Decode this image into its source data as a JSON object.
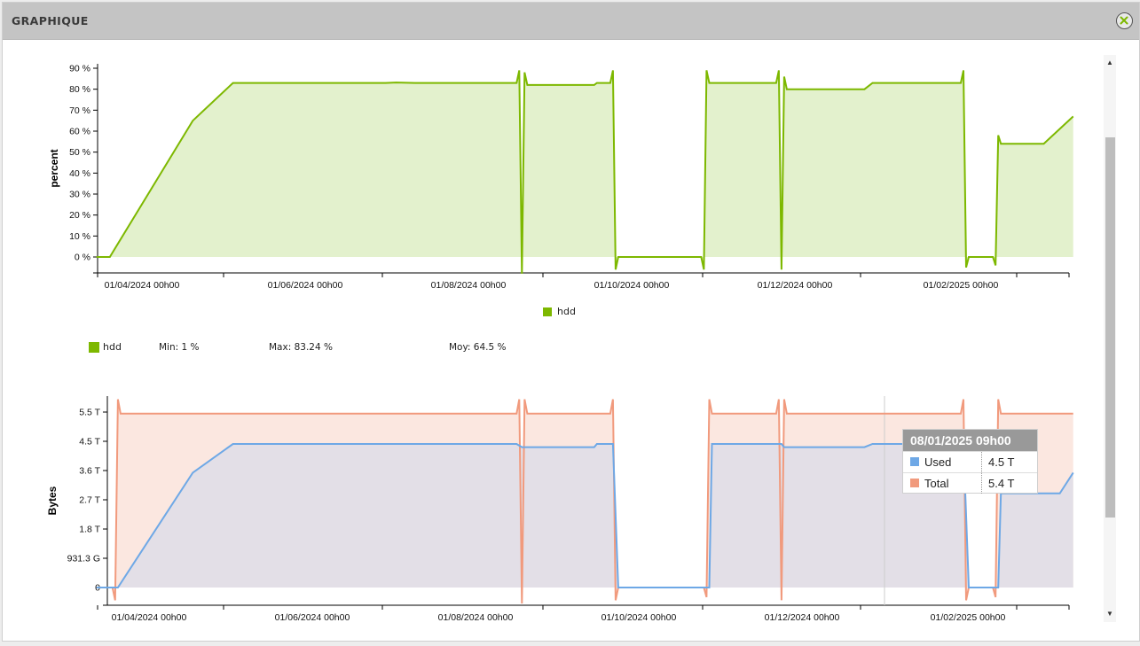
{
  "modal": {
    "title": "GRAPHIQUE"
  },
  "colors": {
    "green": "#7db800",
    "green_fill": "#e3f1cd",
    "blue": "#6ea8e6",
    "salmon": "#f19a7d",
    "salmon_fill": "#fbe7e0",
    "purple_fill": "#e3dfe7"
  },
  "icons": {
    "close": "close-icon",
    "scroll_up": "triangle-up-icon",
    "scroll_down": "triangle-down-icon"
  },
  "chart_data": [
    {
      "type": "area",
      "ylabel": "percent",
      "xlabel": "",
      "y_ticks": [
        "0 %",
        "10 %",
        "20 %",
        "30 %",
        "40 %",
        "50 %",
        "60 %",
        "70 %",
        "80 %",
        "90 %"
      ],
      "ylim": [
        0,
        90
      ],
      "x_ticks": [
        "01/04/2024 00h00",
        "01/06/2024 00h00",
        "01/08/2024 00h00",
        "01/10/2024 00h00",
        "01/12/2024 00h00",
        "01/02/2025 00h00"
      ],
      "legend": [
        "hdd"
      ],
      "series": [
        {
          "name": "hdd",
          "points": [
            [
              "2024-03-15",
              0
            ],
            [
              "2024-03-20",
              0
            ],
            [
              "2024-04-20",
              65
            ],
            [
              "2024-05-05",
              83
            ],
            [
              "2024-07-01",
              83
            ],
            [
              "2024-07-05",
              83.2
            ],
            [
              "2024-07-12",
              83
            ],
            [
              "2024-08-19",
              83
            ],
            [
              "2024-08-20",
              89
            ],
            [
              "2024-08-21",
              -8
            ],
            [
              "2024-08-22",
              88
            ],
            [
              "2024-08-23",
              82
            ],
            [
              "2024-09-17",
              82
            ],
            [
              "2024-09-18",
              83
            ],
            [
              "2024-09-23",
              83
            ],
            [
              "2024-09-24",
              89
            ],
            [
              "2024-09-25",
              -6
            ],
            [
              "2024-09-26",
              0
            ],
            [
              "2024-10-27",
              0
            ],
            [
              "2024-10-28",
              -6
            ],
            [
              "2024-10-29",
              89
            ],
            [
              "2024-10-30",
              83
            ],
            [
              "2024-11-24",
              83
            ],
            [
              "2024-11-25",
              89
            ],
            [
              "2024-11-26",
              -6
            ],
            [
              "2024-11-27",
              86
            ],
            [
              "2024-11-28",
              80
            ],
            [
              "2024-12-27",
              80
            ],
            [
              "2024-12-30",
              83
            ],
            [
              "2025-02-01",
              83
            ],
            [
              "2025-02-02",
              89
            ],
            [
              "2025-02-03",
              -5
            ],
            [
              "2025-02-04",
              0
            ],
            [
              "2025-02-13",
              0
            ],
            [
              "2025-02-14",
              -4
            ],
            [
              "2025-02-15",
              58
            ],
            [
              "2025-02-16",
              54
            ],
            [
              "2025-03-04",
              54
            ],
            [
              "2025-03-15",
              67
            ]
          ]
        }
      ]
    },
    {
      "type": "area",
      "ylabel": "Bytes",
      "xlabel": "",
      "y_ticks": [
        "0",
        "931.3 G",
        "1.8 T",
        "2.7 T",
        "3.6 T",
        "4.5 T",
        "5.5 T"
      ],
      "ylim": [
        0,
        5.5
      ],
      "x_ticks": [
        "01/04/2024 00h00",
        "01/06/2024 00h00",
        "01/08/2024 00h00",
        "01/10/2024 00h00",
        "01/12/2024 00h00",
        "01/02/2025 00h00"
      ],
      "series": [
        {
          "name": "Total",
          "points": [
            [
              "2024-03-15",
              0
            ],
            [
              "2024-03-21",
              0
            ],
            [
              "2024-03-22",
              -0.4
            ],
            [
              "2024-03-23",
              5.9
            ],
            [
              "2024-03-24",
              5.45
            ],
            [
              "2024-08-19",
              5.45
            ],
            [
              "2024-08-20",
              5.9
            ],
            [
              "2024-08-21",
              -0.5
            ],
            [
              "2024-08-22",
              5.9
            ],
            [
              "2024-08-23",
              5.45
            ],
            [
              "2024-09-23",
              5.45
            ],
            [
              "2024-09-24",
              5.9
            ],
            [
              "2024-09-25",
              -0.4
            ],
            [
              "2024-09-26",
              0
            ],
            [
              "2024-10-28",
              0
            ],
            [
              "2024-10-29",
              -0.3
            ],
            [
              "2024-10-30",
              5.9
            ],
            [
              "2024-10-31",
              5.45
            ],
            [
              "2024-11-24",
              5.45
            ],
            [
              "2024-11-25",
              5.9
            ],
            [
              "2024-11-26",
              -0.4
            ],
            [
              "2024-11-27",
              5.9
            ],
            [
              "2024-11-28",
              5.45
            ],
            [
              "2025-02-01",
              5.45
            ],
            [
              "2025-02-02",
              5.9
            ],
            [
              "2025-02-03",
              -0.4
            ],
            [
              "2025-02-04",
              0
            ],
            [
              "2025-02-13",
              0
            ],
            [
              "2025-02-14",
              -0.3
            ],
            [
              "2025-02-15",
              5.9
            ],
            [
              "2025-02-16",
              5.45
            ],
            [
              "2025-03-15",
              5.45
            ]
          ]
        },
        {
          "name": "Used",
          "points": [
            [
              "2024-03-15",
              0
            ],
            [
              "2024-03-23",
              0
            ],
            [
              "2024-04-20",
              3.6
            ],
            [
              "2024-05-05",
              4.5
            ],
            [
              "2024-08-19",
              4.5
            ],
            [
              "2024-08-21",
              4.4
            ],
            [
              "2024-09-17",
              4.4
            ],
            [
              "2024-09-18",
              4.5
            ],
            [
              "2024-09-24",
              4.5
            ],
            [
              "2024-09-26",
              0
            ],
            [
              "2024-10-30",
              0
            ],
            [
              "2024-10-31",
              4.5
            ],
            [
              "2024-11-26",
              4.5
            ],
            [
              "2024-11-27",
              4.4
            ],
            [
              "2024-12-27",
              4.4
            ],
            [
              "2024-12-30",
              4.5
            ],
            [
              "2025-02-02",
              4.5
            ],
            [
              "2025-02-04",
              0
            ],
            [
              "2025-02-15",
              0
            ],
            [
              "2025-02-16",
              2.95
            ],
            [
              "2025-03-10",
              2.95
            ],
            [
              "2025-03-15",
              3.6
            ]
          ]
        }
      ],
      "tooltip": {
        "title": "08/01/2025 09h00",
        "rows": [
          {
            "name": "Used",
            "value": "4.5 T"
          },
          {
            "name": "Total",
            "value": "5.4 T"
          }
        ]
      }
    }
  ],
  "stats": {
    "name": "hdd",
    "min": "Min: 1 %",
    "max": "Max: 83.24 %",
    "avg": "Moy: 64.5 %"
  }
}
